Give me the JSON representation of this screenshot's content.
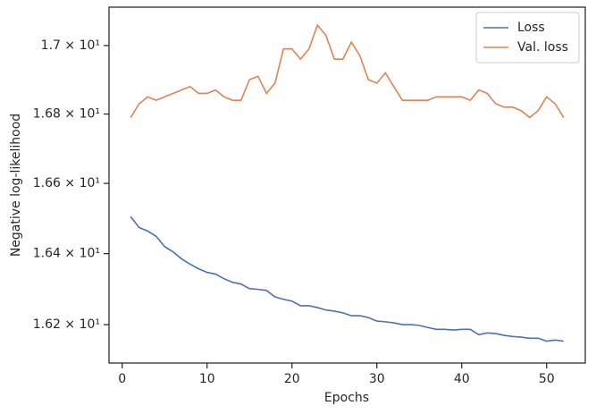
{
  "chart_data": {
    "type": "line",
    "xlabel": "Epochs",
    "ylabel": "Negative log-likelihood",
    "x": [
      1,
      2,
      3,
      4,
      5,
      6,
      7,
      8,
      9,
      10,
      11,
      12,
      13,
      14,
      15,
      16,
      17,
      18,
      19,
      20,
      21,
      22,
      23,
      24,
      25,
      26,
      27,
      28,
      29,
      30,
      31,
      32,
      33,
      34,
      35,
      36,
      37,
      38,
      39,
      40,
      41,
      42,
      43,
      44,
      45,
      46,
      47,
      48,
      49,
      50,
      51,
      52
    ],
    "series": [
      {
        "name": "Loss",
        "color": "#4c72b0",
        "values": [
          16.505,
          16.474,
          16.464,
          16.449,
          16.42,
          16.405,
          16.385,
          16.37,
          16.357,
          16.347,
          16.342,
          16.329,
          16.319,
          16.314,
          16.301,
          16.299,
          16.296,
          16.278,
          16.271,
          16.266,
          16.253,
          16.253,
          16.248,
          16.241,
          16.238,
          16.233,
          16.225,
          16.225,
          16.22,
          16.21,
          16.208,
          16.205,
          16.2,
          16.2,
          16.198,
          16.192,
          16.187,
          16.187,
          16.185,
          16.187,
          16.187,
          16.172,
          16.177,
          16.175,
          16.17,
          16.167,
          16.165,
          16.162,
          16.162,
          16.154,
          16.157,
          16.154
        ]
      },
      {
        "name": "Val. loss",
        "color": "#dd8452",
        "values": [
          16.79,
          16.83,
          16.85,
          16.84,
          16.85,
          16.86,
          16.87,
          16.88,
          16.86,
          16.86,
          16.87,
          16.85,
          16.84,
          16.84,
          16.9,
          16.91,
          16.86,
          16.89,
          16.99,
          16.99,
          16.96,
          16.99,
          17.06,
          17.03,
          16.96,
          16.96,
          17.01,
          16.97,
          16.9,
          16.89,
          16.92,
          16.88,
          16.84,
          16.84,
          16.84,
          16.84,
          16.85,
          16.85,
          16.85,
          16.85,
          16.84,
          16.87,
          16.86,
          16.83,
          16.82,
          16.82,
          16.81,
          16.79,
          16.81,
          16.85,
          16.83,
          16.79
        ]
      }
    ],
    "xlim": [
      -1.55,
      54.55
    ],
    "xticks": [
      0,
      10,
      20,
      30,
      40,
      50
    ],
    "ylim": [
      16.093,
      17.113
    ],
    "ylog": true,
    "yticks": [
      {
        "value": 16.2,
        "label": "1.62 × 10¹"
      },
      {
        "value": 16.4,
        "label": "1.64 × 10¹"
      },
      {
        "value": 16.6,
        "label": "1.66 × 10¹"
      },
      {
        "value": 16.8,
        "label": "1.68 × 10¹"
      },
      {
        "value": 17,
        "label": "1.7 × 10¹"
      }
    ],
    "grid": false,
    "legend": "upper right"
  }
}
